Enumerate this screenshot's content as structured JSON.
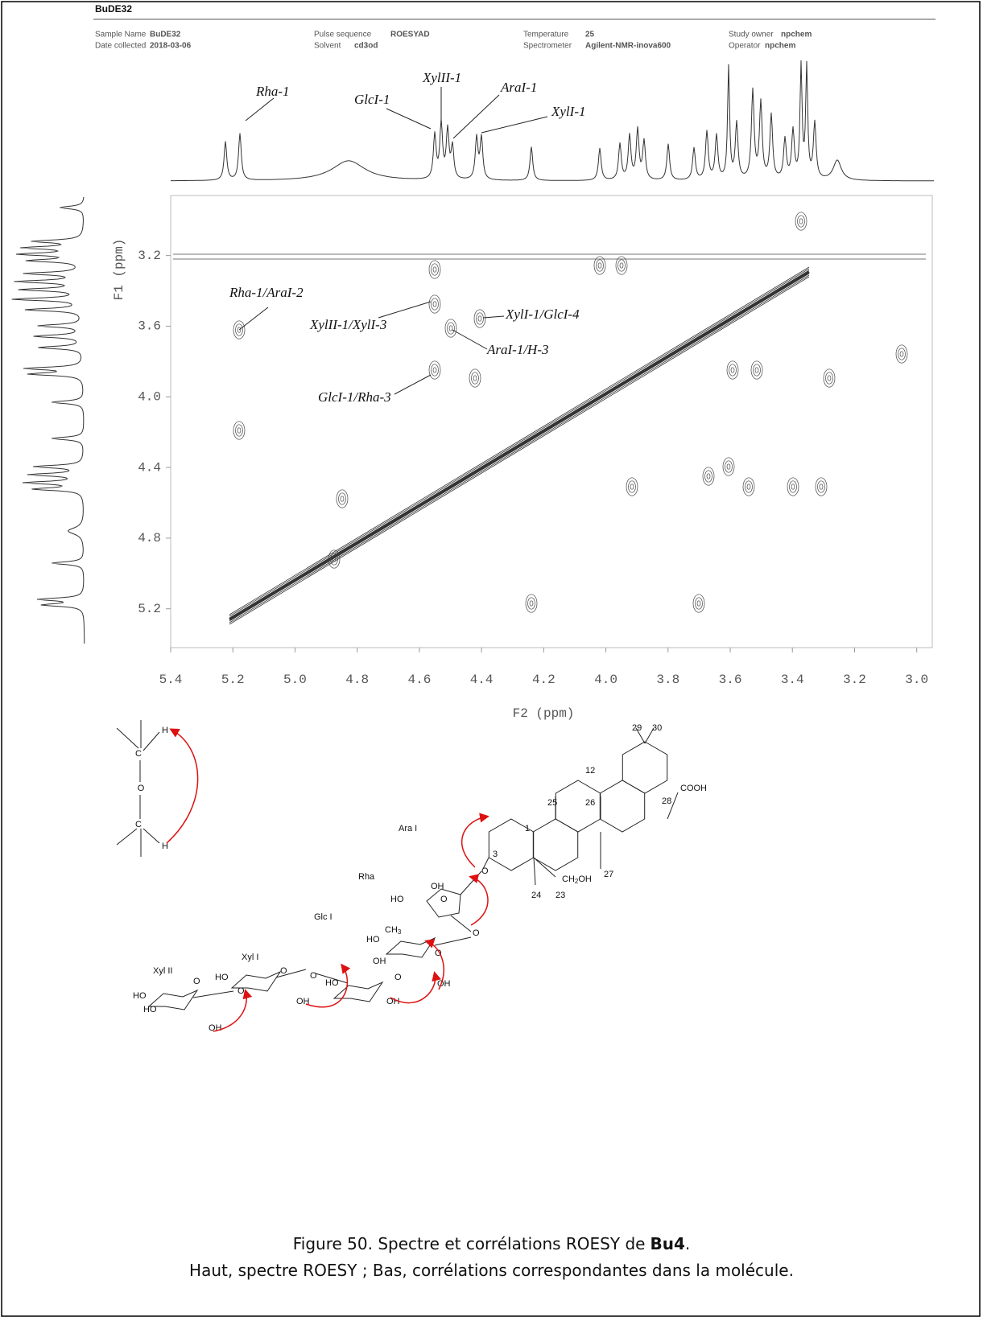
{
  "header": {
    "title": "BuDE32",
    "fields": [
      {
        "label": "Sample Name",
        "value": "BuDE32"
      },
      {
        "label": "Date collected",
        "value": "2018-03-06"
      },
      {
        "label": "Pulse sequence",
        "value": "ROESYAD"
      },
      {
        "label": "Solvent",
        "value": "cd3od"
      },
      {
        "label": "Temperature",
        "value": "25"
      },
      {
        "label": "Spectrometer",
        "value": "Agilent-NMR-inova600"
      },
      {
        "label": "Study owner",
        "value": "npchem"
      },
      {
        "label": "Operator",
        "value": "npchem"
      }
    ]
  },
  "spectrum": {
    "f1_label": "F1 (ppm)",
    "f2_label": "F2 (ppm)",
    "xlim": [
      5.4,
      2.95
    ],
    "ylim": [
      2.86,
      5.42
    ],
    "f2_ticks": [
      5.4,
      5.2,
      {
        "value": 5,
        "label": "5.0"
      },
      4.8,
      4.6,
      4.4,
      4.2,
      {
        "value": 4,
        "label": "4.0"
      },
      3.8,
      3.6,
      3.4,
      3.2,
      {
        "value": 3,
        "label": "3.0"
      }
    ],
    "f1_ticks": [
      3.2,
      3.6,
      {
        "value": 4,
        "label": "4.0"
      },
      4.4,
      4.8,
      5.2
    ],
    "top_annotations": [
      "Rha-1",
      "GlcI-1",
      "XylII-1",
      "AraI-1",
      "XylI-1"
    ],
    "cross_peak_annotations": [
      "Rha-1/AraI-2",
      "XylII-1/XylI-3",
      "XylI-1/GlcI-4",
      "AraI-1/H-3",
      "GlcI-1/Rha-3"
    ]
  },
  "scheme": {
    "labels": [
      "H",
      "C",
      "O",
      "C",
      "H"
    ]
  },
  "molecule": {
    "labels": [
      "29",
      "30",
      "12",
      "25",
      "26",
      "COOH",
      "28",
      "1",
      "3",
      "27",
      "24",
      "23",
      "O"
    ],
    "ch2oh": [
      "CH",
      "2",
      "OH"
    ],
    "ch3": [
      "CH",
      "3"
    ],
    "sugars": [
      "Ara I",
      "Rha",
      "Glc I",
      "Xyl I",
      "Xyl II"
    ],
    "oxygens": [
      "OH",
      "HO",
      "O",
      "O",
      "HO",
      "O",
      "OH",
      "OH",
      "O",
      "HO",
      "OH",
      "O",
      "HO",
      "O",
      "O",
      "OH",
      "HO",
      "HO",
      "O",
      "OH"
    ]
  },
  "caption": {
    "line1": [
      "Figure 50. Spectre et corrélations ROESY de",
      "Bu4",
      "."
    ],
    "line2": "Haut, spectre ROESY ; Bas, corrélations correspondantes dans la molécule."
  }
}
